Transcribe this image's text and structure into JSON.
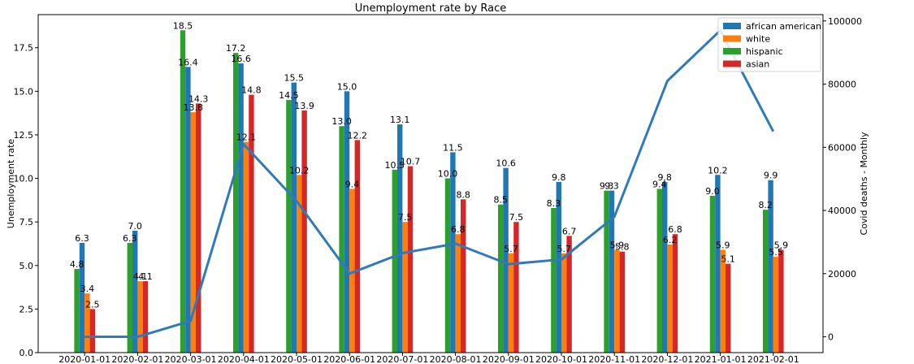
{
  "chart_data": {
    "type": "bar",
    "title": "Unemployment rate by Race",
    "xlabel": "",
    "ylabel": "Unemployment rate",
    "y2label": "Covid deaths - Monthly",
    "ylim": [
      0,
      19.4
    ],
    "y2lim": [
      -5000,
      102000
    ],
    "yticks": [
      "0.0",
      "2.5",
      "5.0",
      "7.5",
      "10.0",
      "12.5",
      "15.0",
      "17.5"
    ],
    "y2ticks": [
      "0",
      "20000",
      "40000",
      "60000",
      "80000",
      "100000"
    ],
    "grid": false,
    "legend_position": "top-right",
    "categories": [
      "2020-01-01",
      "2020-02-01",
      "2020-03-01",
      "2020-04-01",
      "2020-05-01",
      "2020-06-01",
      "2020-07-01",
      "2020-08-01",
      "2020-09-01",
      "2020-10-01",
      "2020-11-01",
      "2020-12-01",
      "2021-01-01",
      "2021-02-01"
    ],
    "series": [
      {
        "name": "hispanic",
        "color": "#2ca02c",
        "values": [
          4.8,
          6.3,
          18.5,
          17.2,
          14.5,
          13.0,
          10.5,
          10.0,
          8.5,
          8.3,
          9.3,
          9.4,
          9.0,
          8.2
        ]
      },
      {
        "name": "african american",
        "color": "#1f77b4",
        "values": [
          6.3,
          7.0,
          16.4,
          16.6,
          15.5,
          15.0,
          13.1,
          11.5,
          10.6,
          9.8,
          9.3,
          9.8,
          10.2,
          9.9
        ]
      },
      {
        "name": "white",
        "color": "#ff7f0e",
        "values": [
          3.4,
          4.1,
          13.8,
          12.1,
          10.2,
          9.4,
          7.5,
          6.8,
          5.7,
          5.7,
          5.9,
          6.2,
          5.9,
          5.5
        ]
      },
      {
        "name": "asian",
        "color": "#d62728",
        "values": [
          2.5,
          4.1,
          14.3,
          14.8,
          13.9,
          12.2,
          10.7,
          8.8,
          7.5,
          6.7,
          5.8,
          6.8,
          5.1,
          5.9
        ]
      }
    ],
    "legend_order": [
      "african american",
      "white",
      "hispanic",
      "asian"
    ],
    "line_series": {
      "axis": "secondary",
      "color": "#2f7ab8",
      "values": [
        0,
        0,
        5000,
        61000,
        43000,
        20000,
        26500,
        29500,
        23000,
        24500,
        38000,
        81000,
        97000,
        65000
      ]
    }
  }
}
